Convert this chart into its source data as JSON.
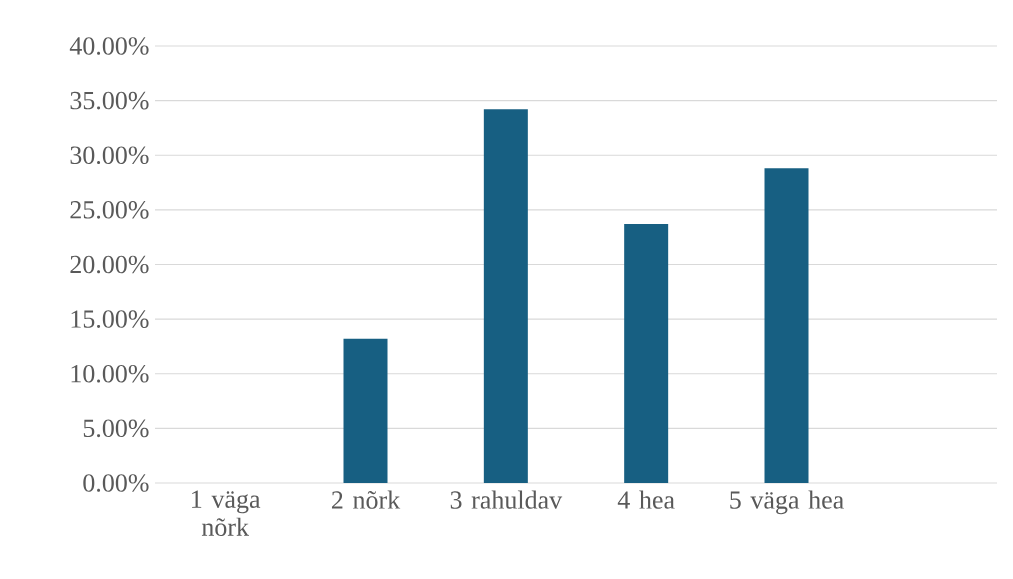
{
  "chart_data": {
    "type": "bar",
    "categories": [
      "1 väga nõrk",
      "2 nõrk",
      "3 rahuldav",
      "4 hea",
      "5 väga hea",
      null
    ],
    "values": [
      0,
      13.2,
      34.2,
      23.7,
      28.8,
      null
    ],
    "color": "#175f82",
    "ylim": [
      0,
      40
    ],
    "yticks": [
      {
        "value": 0,
        "label": "0.00%"
      },
      {
        "value": 5,
        "label": "5.00%"
      },
      {
        "value": 10,
        "label": "10.00%"
      },
      {
        "value": 15,
        "label": "15.00%"
      },
      {
        "value": 20,
        "label": "20.00%"
      },
      {
        "value": 25,
        "label": "25.00%"
      },
      {
        "value": 30,
        "label": "30.00%"
      },
      {
        "value": 35,
        "label": "35.00%"
      },
      {
        "value": 40,
        "label": "40.00%"
      }
    ],
    "grid": "y"
  }
}
